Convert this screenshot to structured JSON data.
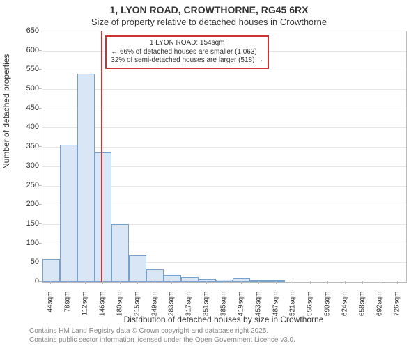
{
  "title": {
    "main": "1, LYON ROAD, CROWTHORNE, RG45 6RX",
    "sub": "Size of property relative to detached houses in Crowthorne",
    "fontsize_main": 14,
    "fontsize_sub": 13,
    "color": "#333333"
  },
  "chart": {
    "type": "histogram",
    "plot_bg": "#ffffff",
    "border_color": "#bbbbbb",
    "grid_color": "#e6e6e6",
    "bar_fill": "#d8e6f5",
    "bar_stroke": "#77a0cc",
    "bar_stroke_width": 1,
    "categories": [
      "44sqm",
      "78sqm",
      "112sqm",
      "146sqm",
      "180sqm",
      "215sqm",
      "249sqm",
      "283sqm",
      "317sqm",
      "351sqm",
      "385sqm",
      "419sqm",
      "453sqm",
      "487sqm",
      "521sqm",
      "556sqm",
      "590sqm",
      "624sqm",
      "658sqm",
      "692sqm",
      "726sqm"
    ],
    "values": [
      60,
      355,
      540,
      335,
      150,
      68,
      33,
      18,
      12,
      8,
      6,
      9,
      4,
      3,
      0,
      0,
      0,
      0,
      0,
      0,
      0
    ],
    "ylabel": "Number of detached properties",
    "xlabel": "Distribution of detached houses by size in Crowthorne",
    "label_fontsize": 12,
    "tick_fontsize": 11,
    "xtick_fontsize": 10,
    "ylim": [
      0,
      650
    ],
    "ytick_step": 50,
    "xtick_rotation": -90,
    "bar_width_ratio": 1.0
  },
  "reference": {
    "x_value": 154,
    "x_range": [
      44,
      726
    ],
    "line_color": "#cc3333",
    "line_width": 2
  },
  "annotation": {
    "border_color": "#cc3333",
    "border_width": 2,
    "text_color": "#333333",
    "fontsize": 10,
    "line1": "1 LYON ROAD: 154sqm",
    "line2": "← 66% of detached houses are smaller (1,063)",
    "line3": "32% of semi-detached houses are larger (518) →"
  },
  "footer": {
    "line1": "Contains HM Land Registry data © Crown copyright and database right 2025.",
    "line2": "Contains public sector information licensed under the Open Government Licence v3.0.",
    "color": "#888888",
    "fontsize": 10
  }
}
